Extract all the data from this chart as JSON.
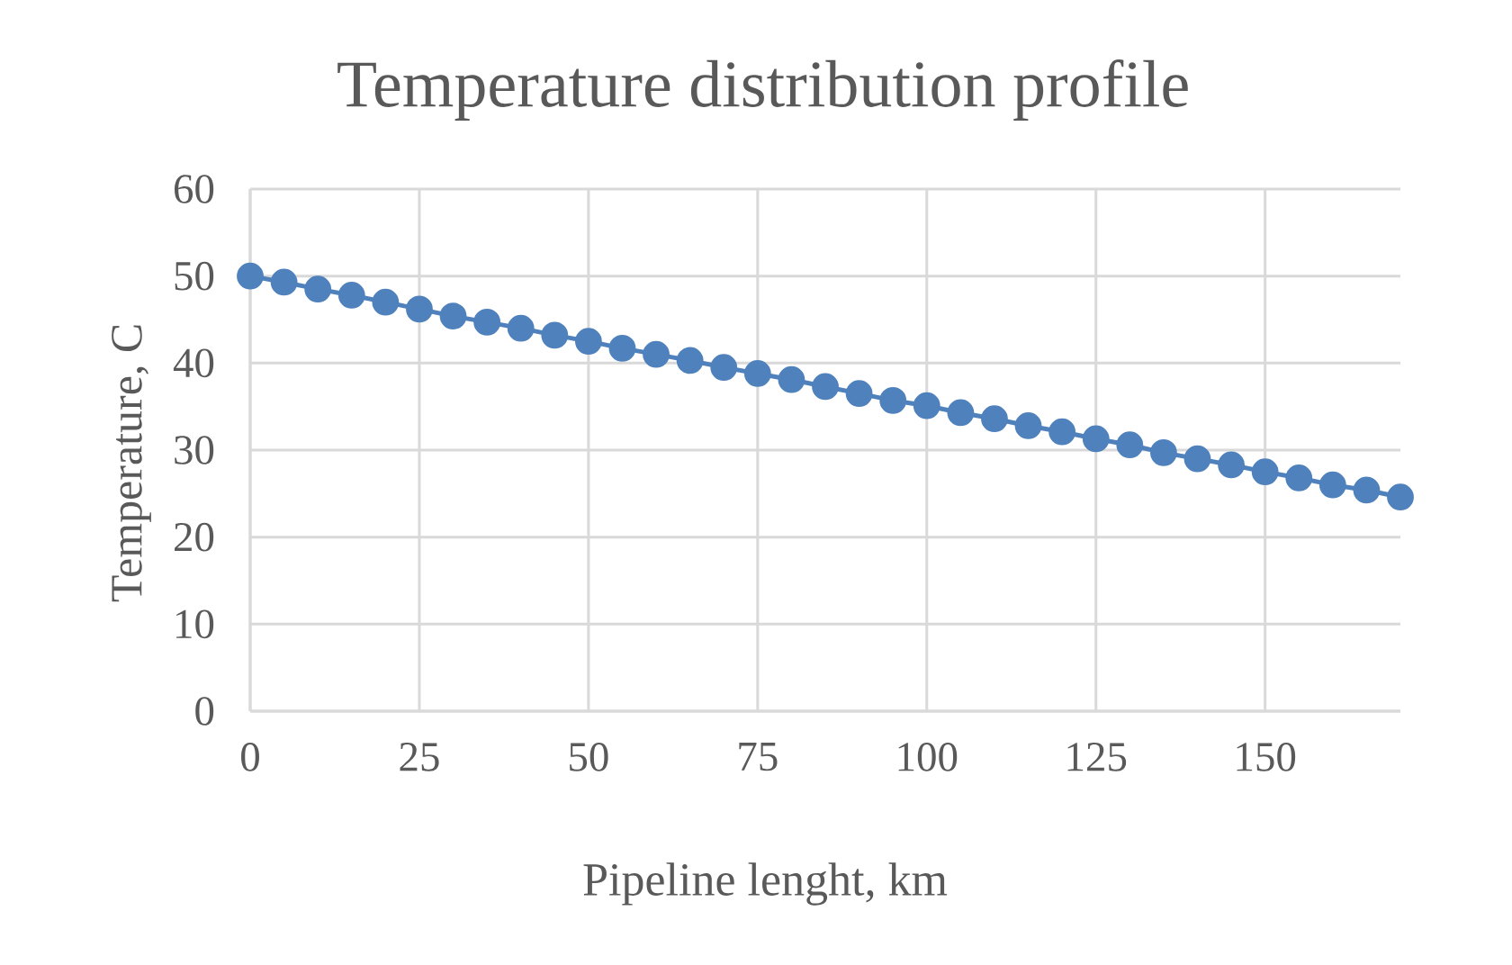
{
  "chart_data": {
    "type": "line",
    "title": "Temperature distribution profile",
    "xlabel": "Pipeline lenght, km",
    "ylabel": "Temperature, C",
    "x": [
      0,
      5,
      10,
      15,
      20,
      25,
      30,
      35,
      40,
      45,
      50,
      55,
      60,
      65,
      70,
      75,
      80,
      85,
      90,
      95,
      100,
      105,
      110,
      115,
      120,
      125,
      130,
      135,
      140,
      145,
      150,
      155,
      160,
      165,
      170
    ],
    "series": [
      {
        "color": "#4f81bd",
        "values": [
          50.0,
          49.3,
          48.5,
          47.8,
          47.0,
          46.2,
          45.4,
          44.7,
          44.0,
          43.2,
          42.5,
          41.7,
          41.0,
          40.3,
          39.5,
          38.8,
          38.1,
          37.3,
          36.5,
          35.7,
          35.1,
          34.3,
          33.6,
          32.8,
          32.1,
          31.3,
          30.6,
          29.7,
          29.0,
          28.3,
          27.5,
          26.8,
          26.0,
          25.4,
          24.6
        ]
      }
    ],
    "xlim": [
      0,
      170
    ],
    "ylim": [
      0,
      60
    ],
    "xticks": [
      0,
      25,
      50,
      75,
      100,
      125,
      150
    ],
    "yticks": [
      0,
      10,
      20,
      30,
      40,
      50,
      60
    ],
    "grid": true,
    "marker": "circle",
    "line_style": "solid"
  }
}
